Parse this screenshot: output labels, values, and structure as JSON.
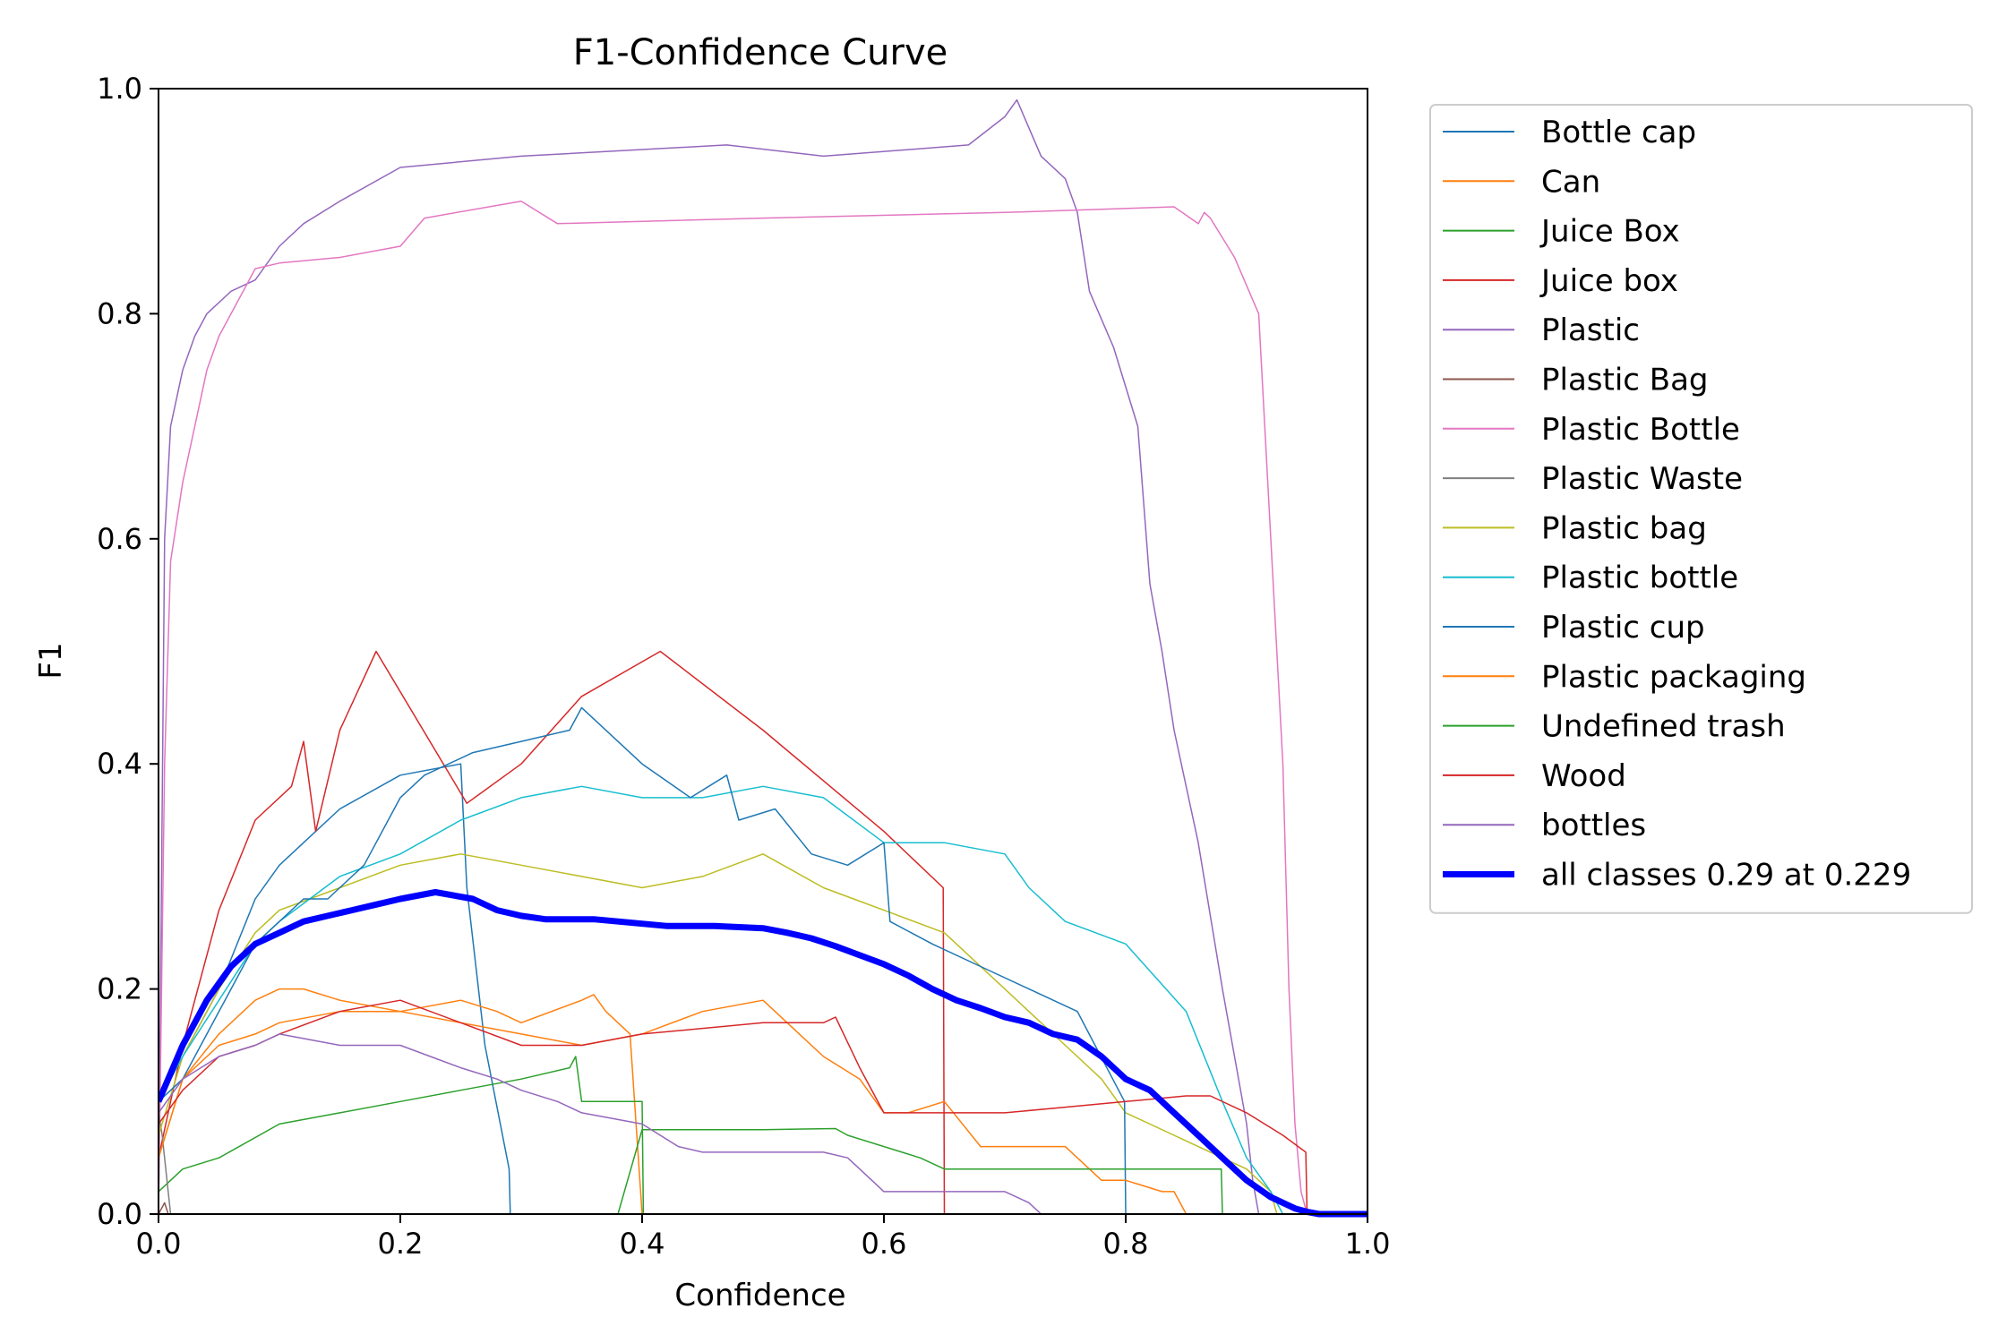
{
  "chart_data": {
    "type": "line",
    "title": "F1-Confidence Curve",
    "xlabel": "Confidence",
    "ylabel": "F1",
    "xlim": [
      0,
      1
    ],
    "ylim": [
      0,
      1
    ],
    "xticks": [
      0.0,
      0.2,
      0.4,
      0.6,
      0.8,
      1.0
    ],
    "yticks": [
      0.0,
      0.2,
      0.4,
      0.6,
      0.8,
      1.0
    ],
    "xtick_labels": [
      "0.0",
      "0.2",
      "0.4",
      "0.6",
      "0.8",
      "1.0"
    ],
    "ytick_labels": [
      "0.0",
      "0.2",
      "0.4",
      "0.6",
      "0.8",
      "1.0"
    ],
    "grid": false,
    "legend_position": "outside-right-top",
    "series": [
      {
        "name": "Bottle cap",
        "color": "#1f77b4",
        "width": 1.5,
        "x": [
          0.0,
          0.01,
          0.02,
          0.05,
          0.08,
          0.1,
          0.13,
          0.15,
          0.2,
          0.25,
          0.255,
          0.27,
          0.29,
          0.291
        ],
        "y": [
          0.1,
          0.12,
          0.14,
          0.2,
          0.28,
          0.31,
          0.34,
          0.36,
          0.39,
          0.4,
          0.29,
          0.15,
          0.04,
          0.0
        ]
      },
      {
        "name": "Can",
        "color": "#ff7f0e",
        "width": 1.5,
        "x": [
          0.0,
          0.02,
          0.05,
          0.08,
          0.1,
          0.12,
          0.15,
          0.2,
          0.25,
          0.28,
          0.3,
          0.35,
          0.36,
          0.37,
          0.39,
          0.4
        ],
        "y": [
          0.05,
          0.12,
          0.16,
          0.19,
          0.2,
          0.2,
          0.19,
          0.18,
          0.19,
          0.18,
          0.17,
          0.19,
          0.195,
          0.18,
          0.16,
          0.0
        ]
      },
      {
        "name": "Juice Box",
        "color": "#2ca02c",
        "width": 1.5,
        "x": [
          0.0,
          0.02,
          0.05,
          0.1,
          0.15,
          0.2,
          0.25,
          0.3,
          0.34,
          0.345,
          0.35,
          0.4,
          0.401
        ],
        "y": [
          0.02,
          0.04,
          0.05,
          0.08,
          0.09,
          0.1,
          0.11,
          0.12,
          0.13,
          0.14,
          0.1,
          0.1,
          0.0
        ]
      },
      {
        "name": "Juice box",
        "color": "#d62728",
        "width": 1.5,
        "x": [
          0.0,
          0.02,
          0.05,
          0.08,
          0.11,
          0.12,
          0.13,
          0.15,
          0.18,
          0.255,
          0.3,
          0.35,
          0.415,
          0.5,
          0.6,
          0.649,
          0.65
        ],
        "y": [
          0.05,
          0.15,
          0.27,
          0.35,
          0.38,
          0.42,
          0.34,
          0.43,
          0.5,
          0.365,
          0.4,
          0.46,
          0.5,
          0.43,
          0.34,
          0.29,
          0.0
        ]
      },
      {
        "name": "Plastic",
        "color": "#9467bd",
        "width": 1.5,
        "x": [
          0.0,
          0.005,
          0.01,
          0.02,
          0.03,
          0.04,
          0.06,
          0.08,
          0.1,
          0.12,
          0.15,
          0.2,
          0.3,
          0.47,
          0.55,
          0.67,
          0.7,
          0.71,
          0.73,
          0.75,
          0.76,
          0.77,
          0.79,
          0.81,
          0.82,
          0.83,
          0.84,
          0.86,
          0.88,
          0.9,
          0.905,
          0.91
        ],
        "y": [
          0.0,
          0.6,
          0.7,
          0.75,
          0.78,
          0.8,
          0.82,
          0.83,
          0.86,
          0.88,
          0.9,
          0.93,
          0.94,
          0.95,
          0.94,
          0.95,
          0.975,
          0.99,
          0.94,
          0.92,
          0.89,
          0.82,
          0.77,
          0.7,
          0.56,
          0.5,
          0.43,
          0.33,
          0.2,
          0.08,
          0.03,
          0.0
        ]
      },
      {
        "name": "Plastic Bag",
        "color": "#8c564b",
        "width": 1.5,
        "x": [
          0.0,
          0.005,
          0.008
        ],
        "y": [
          0.0,
          0.01,
          0.0
        ]
      },
      {
        "name": "Plastic Bottle",
        "color": "#e377c2",
        "width": 1.5,
        "x": [
          0.0,
          0.005,
          0.01,
          0.02,
          0.03,
          0.04,
          0.05,
          0.06,
          0.07,
          0.08,
          0.1,
          0.15,
          0.2,
          0.22,
          0.3,
          0.33,
          0.5,
          0.7,
          0.84,
          0.86,
          0.865,
          0.87,
          0.89,
          0.91,
          0.92,
          0.93,
          0.935,
          0.94,
          0.945,
          0.95
        ],
        "y": [
          0.0,
          0.4,
          0.58,
          0.65,
          0.7,
          0.75,
          0.78,
          0.8,
          0.82,
          0.84,
          0.845,
          0.85,
          0.86,
          0.885,
          0.9,
          0.88,
          0.885,
          0.89,
          0.895,
          0.88,
          0.89,
          0.885,
          0.85,
          0.8,
          0.6,
          0.4,
          0.2,
          0.08,
          0.02,
          0.0
        ]
      },
      {
        "name": "Plastic Waste",
        "color": "#7f7f7f",
        "width": 1.5,
        "x": [
          0.0,
          0.003,
          0.006,
          0.008,
          0.01
        ],
        "y": [
          0.09,
          0.07,
          0.04,
          0.02,
          0.0
        ]
      },
      {
        "name": "Plastic bag",
        "color": "#bcbd22",
        "width": 1.5,
        "x": [
          0.0,
          0.02,
          0.05,
          0.08,
          0.1,
          0.15,
          0.2,
          0.25,
          0.3,
          0.35,
          0.4,
          0.45,
          0.5,
          0.55,
          0.6,
          0.65,
          0.7,
          0.75,
          0.78,
          0.8,
          0.84,
          0.88,
          0.9,
          0.92,
          0.925
        ],
        "y": [
          0.07,
          0.14,
          0.2,
          0.25,
          0.27,
          0.29,
          0.31,
          0.32,
          0.31,
          0.3,
          0.29,
          0.3,
          0.32,
          0.29,
          0.27,
          0.25,
          0.2,
          0.15,
          0.12,
          0.09,
          0.07,
          0.05,
          0.04,
          0.02,
          0.0
        ]
      },
      {
        "name": "Plastic bottle",
        "color": "#17becf",
        "width": 1.5,
        "x": [
          0.0,
          0.02,
          0.05,
          0.08,
          0.1,
          0.15,
          0.2,
          0.25,
          0.3,
          0.35,
          0.4,
          0.45,
          0.5,
          0.55,
          0.6,
          0.65,
          0.7,
          0.72,
          0.75,
          0.8,
          0.85,
          0.88,
          0.9,
          0.92,
          0.93
        ],
        "y": [
          0.1,
          0.14,
          0.19,
          0.24,
          0.26,
          0.3,
          0.32,
          0.35,
          0.37,
          0.38,
          0.37,
          0.37,
          0.38,
          0.37,
          0.33,
          0.33,
          0.32,
          0.29,
          0.26,
          0.24,
          0.18,
          0.1,
          0.05,
          0.02,
          0.0
        ]
      },
      {
        "name": "Plastic cup",
        "color": "#1f77b4",
        "width": 1.5,
        "x": [
          0.0,
          0.02,
          0.04,
          0.06,
          0.08,
          0.1,
          0.12,
          0.14,
          0.17,
          0.2,
          0.22,
          0.26,
          0.3,
          0.34,
          0.35,
          0.38,
          0.4,
          0.44,
          0.47,
          0.48,
          0.51,
          0.54,
          0.57,
          0.6,
          0.605,
          0.64,
          0.68,
          0.72,
          0.76,
          0.799,
          0.8
        ],
        "y": [
          0.1,
          0.12,
          0.16,
          0.2,
          0.24,
          0.26,
          0.28,
          0.28,
          0.31,
          0.37,
          0.39,
          0.41,
          0.42,
          0.43,
          0.45,
          0.42,
          0.4,
          0.37,
          0.39,
          0.35,
          0.36,
          0.32,
          0.31,
          0.33,
          0.26,
          0.24,
          0.22,
          0.2,
          0.18,
          0.1,
          0.0
        ]
      },
      {
        "name": "Plastic packaging",
        "color": "#ff7f0e",
        "width": 1.5,
        "x": [
          0.0,
          0.02,
          0.05,
          0.08,
          0.1,
          0.15,
          0.2,
          0.25,
          0.3,
          0.35,
          0.4,
          0.45,
          0.5,
          0.53,
          0.55,
          0.58,
          0.6,
          0.62,
          0.65,
          0.68,
          0.7,
          0.75,
          0.78,
          0.8,
          0.83,
          0.84,
          0.85
        ],
        "y": [
          0.05,
          0.12,
          0.15,
          0.16,
          0.17,
          0.18,
          0.18,
          0.17,
          0.16,
          0.15,
          0.16,
          0.18,
          0.19,
          0.16,
          0.14,
          0.12,
          0.09,
          0.09,
          0.1,
          0.06,
          0.06,
          0.06,
          0.03,
          0.03,
          0.02,
          0.02,
          0.0
        ]
      },
      {
        "name": "Undefined trash",
        "color": "#2ca02c",
        "width": 1.5,
        "x": [
          0.0,
          0.05,
          0.1,
          0.2,
          0.3,
          0.35,
          0.38,
          0.4,
          0.5,
          0.56,
          0.57,
          0.63,
          0.65,
          0.7,
          0.8,
          0.87,
          0.879,
          0.88
        ],
        "y": [
          0.0,
          0.0,
          0.0,
          0.0,
          0.0,
          0.0,
          0.0,
          0.075,
          0.075,
          0.076,
          0.07,
          0.05,
          0.04,
          0.04,
          0.04,
          0.04,
          0.04,
          0.0
        ]
      },
      {
        "name": "Wood",
        "color": "#d62728",
        "width": 1.5,
        "x": [
          0.0,
          0.02,
          0.05,
          0.08,
          0.1,
          0.15,
          0.2,
          0.25,
          0.3,
          0.35,
          0.4,
          0.45,
          0.5,
          0.55,
          0.56,
          0.58,
          0.6,
          0.65,
          0.7,
          0.75,
          0.8,
          0.85,
          0.87,
          0.9,
          0.93,
          0.949,
          0.95
        ],
        "y": [
          0.08,
          0.11,
          0.14,
          0.15,
          0.16,
          0.18,
          0.19,
          0.17,
          0.15,
          0.15,
          0.16,
          0.165,
          0.17,
          0.17,
          0.175,
          0.13,
          0.09,
          0.09,
          0.09,
          0.095,
          0.1,
          0.105,
          0.105,
          0.09,
          0.07,
          0.055,
          0.0
        ]
      },
      {
        "name": "bottles",
        "color": "#9467bd",
        "width": 1.5,
        "x": [
          0.0,
          0.02,
          0.05,
          0.08,
          0.1,
          0.15,
          0.2,
          0.25,
          0.28,
          0.3,
          0.33,
          0.35,
          0.4,
          0.43,
          0.45,
          0.5,
          0.55,
          0.57,
          0.58,
          0.6,
          0.62,
          0.65,
          0.7,
          0.72,
          0.73
        ],
        "y": [
          0.09,
          0.12,
          0.14,
          0.15,
          0.16,
          0.15,
          0.15,
          0.13,
          0.12,
          0.11,
          0.1,
          0.09,
          0.08,
          0.06,
          0.055,
          0.055,
          0.055,
          0.05,
          0.04,
          0.02,
          0.02,
          0.02,
          0.02,
          0.01,
          0.0
        ]
      },
      {
        "name": "all classes 0.29 at 0.229",
        "color": "#0000ff",
        "width": 7,
        "x": [
          0.0,
          0.02,
          0.04,
          0.06,
          0.08,
          0.1,
          0.12,
          0.14,
          0.16,
          0.18,
          0.2,
          0.229,
          0.26,
          0.28,
          0.3,
          0.32,
          0.34,
          0.36,
          0.38,
          0.4,
          0.42,
          0.44,
          0.46,
          0.48,
          0.5,
          0.52,
          0.54,
          0.56,
          0.58,
          0.6,
          0.62,
          0.64,
          0.66,
          0.68,
          0.7,
          0.72,
          0.74,
          0.76,
          0.78,
          0.8,
          0.82,
          0.84,
          0.86,
          0.88,
          0.9,
          0.92,
          0.94,
          0.95,
          0.96,
          0.97,
          0.98,
          1.0
        ],
        "y": [
          0.1,
          0.15,
          0.19,
          0.22,
          0.24,
          0.25,
          0.26,
          0.265,
          0.27,
          0.275,
          0.28,
          0.286,
          0.28,
          0.27,
          0.265,
          0.262,
          0.262,
          0.262,
          0.26,
          0.258,
          0.256,
          0.256,
          0.256,
          0.255,
          0.254,
          0.25,
          0.245,
          0.238,
          0.23,
          0.222,
          0.212,
          0.2,
          0.19,
          0.183,
          0.175,
          0.17,
          0.16,
          0.155,
          0.14,
          0.12,
          0.11,
          0.09,
          0.07,
          0.05,
          0.03,
          0.015,
          0.005,
          0.002,
          0.0,
          0.0,
          0.0,
          0.0
        ]
      }
    ]
  }
}
